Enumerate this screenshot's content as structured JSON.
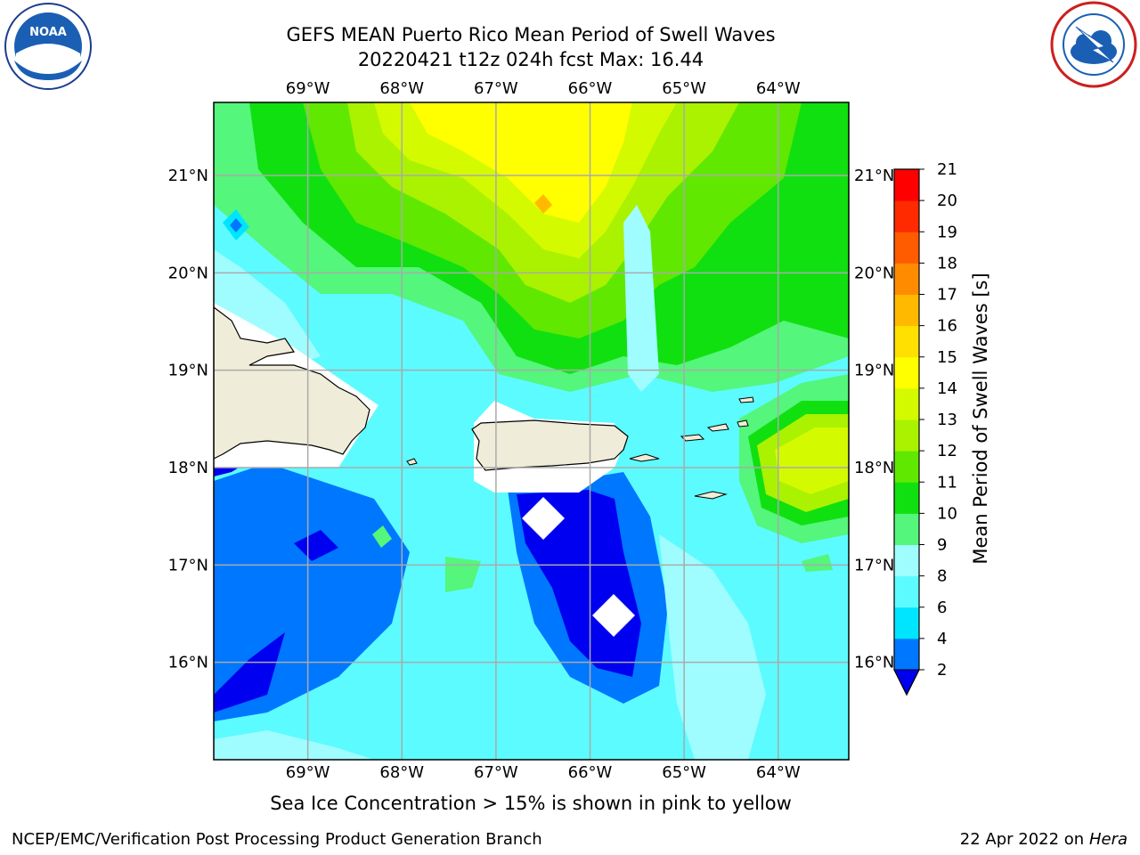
{
  "header": {
    "title_line1": "GEFS MEAN Puerto Rico Mean Period of Swell Waves",
    "title_line2": "20220421 t12z 024h fcst   Max: 16.44"
  },
  "logos": {
    "left": "noaa-logo",
    "right": "nws-logo"
  },
  "chart_data": {
    "type": "heatmap",
    "title": "GEFS MEAN Puerto Rico Mean Period of Swell Waves",
    "subtitle": "20220421 t12z 024h fcst   Max: 16.44",
    "lon_range": [
      -70.0,
      -63.25
    ],
    "lat_range": [
      15.0,
      21.75
    ],
    "x_ticks": [
      "69°W",
      "68°W",
      "67°W",
      "66°W",
      "65°W",
      "64°W"
    ],
    "y_ticks": [
      "16°N",
      "17°N",
      "18°N",
      "19°N",
      "20°N",
      "21°N"
    ],
    "grid": true,
    "colorbar": {
      "label": "Mean Period of Swell Waves [s]",
      "levels": [
        2,
        4,
        6,
        8,
        9,
        10,
        11,
        12,
        13,
        14,
        15,
        16,
        17,
        18,
        19,
        20,
        21
      ],
      "level_labels": [
        "2",
        "4",
        "6",
        "8",
        "9",
        "10",
        "11",
        "12",
        "13",
        "14",
        "15",
        "16",
        "17",
        "18",
        "19",
        "20",
        "21"
      ],
      "colors": [
        "#0077ff",
        "#00e5ff",
        "#5cfbff",
        "#9ffdff",
        "#54f67b",
        "#10e010",
        "#60e800",
        "#aaf200",
        "#d4fa00",
        "#ffff00",
        "#ffe000",
        "#ffba00",
        "#ff8c00",
        "#ff5c00",
        "#ff2a00",
        "#ff0000"
      ],
      "under_color": "#0000f0",
      "extend": "min"
    },
    "max_value": 16.44,
    "land_color": "#efedd9"
  },
  "footer": {
    "sea_ice_note": "Sea Ice Concentration > 15% is shown in pink to yellow",
    "branch": "NCEP/EMC/Verification Post Processing Product Generation Branch",
    "date": "22 Apr 2022 on ",
    "machine": "Hera"
  }
}
